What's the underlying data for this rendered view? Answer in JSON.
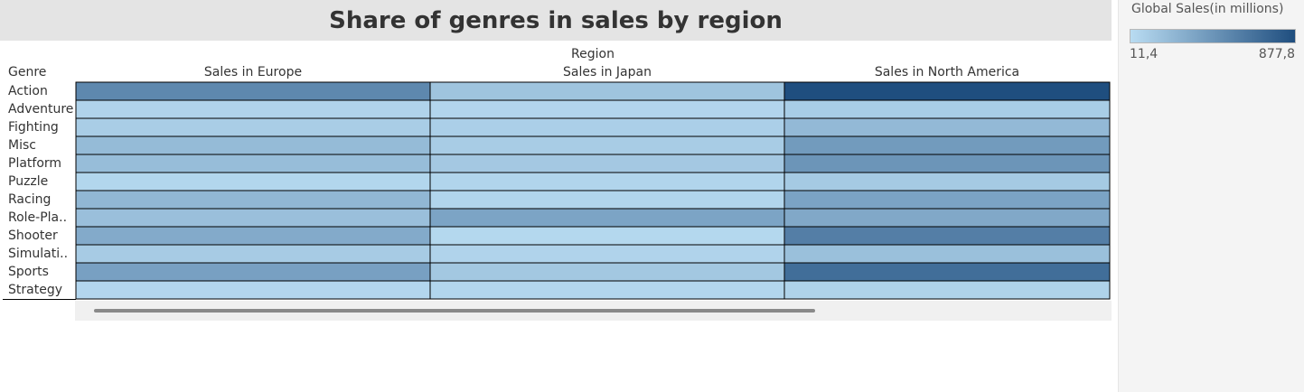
{
  "colors": {
    "low": "#b9dcf2",
    "high": "#1f4e7f",
    "cell_border": "#000000"
  },
  "legend": {
    "title": "Global Sales(in millions)",
    "min_label": "11,4",
    "max_label": "877,8",
    "min": 11.4,
    "max": 877.8
  },
  "chart_data": {
    "type": "heatmap",
    "title": "Share of genres in sales by region",
    "column_group_label": "Region",
    "row_header": "Genre",
    "columns": [
      "Sales in Europe",
      "Sales in Japan",
      "Sales in North America"
    ],
    "rows": [
      "Action",
      "Adventure",
      "Fighting",
      "Misc",
      "Platform",
      "Puzzle",
      "Racing",
      "Role-Pla..",
      "Shooter",
      "Simulati..",
      "Sports",
      "Strategy"
    ],
    "values": [
      [
        525,
        159,
        878
      ],
      [
        64,
        52,
        105
      ],
      [
        101,
        88,
        223
      ],
      [
        215,
        107,
        410
      ],
      [
        202,
        131,
        447
      ],
      [
        50,
        57,
        123
      ],
      [
        238,
        57,
        360
      ],
      [
        188,
        352,
        328
      ],
      [
        314,
        38,
        582
      ],
      [
        114,
        64,
        184
      ],
      [
        376,
        136,
        684
      ],
      [
        45,
        49,
        68
      ]
    ]
  }
}
